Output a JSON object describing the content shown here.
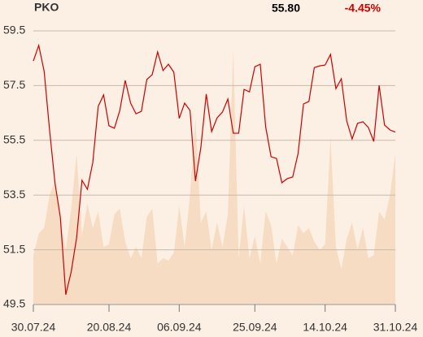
{
  "chart_data": {
    "type": "line",
    "title": "PKO",
    "annotations": [
      "55.80",
      "-4.45%"
    ],
    "categories": [
      "30.07.24",
      null,
      null,
      null,
      null,
      null,
      null,
      null,
      null,
      null,
      null,
      null,
      null,
      null,
      "20.08.24",
      null,
      null,
      null,
      null,
      null,
      null,
      null,
      null,
      null,
      null,
      null,
      null,
      "06.09.24",
      null,
      null,
      null,
      null,
      null,
      null,
      null,
      null,
      null,
      null,
      null,
      null,
      null,
      "25.09.24",
      null,
      null,
      null,
      null,
      null,
      null,
      null,
      null,
      null,
      null,
      null,
      null,
      "14.10.24",
      null,
      null,
      null,
      null,
      null,
      null,
      null,
      null,
      null,
      null,
      null,
      null,
      "31.10.24"
    ],
    "series": [
      {
        "name": "PKO",
        "color": "#cc0000",
        "values": [
          58.4,
          58.97,
          58.02,
          55.88,
          53.95,
          52.68,
          49.86,
          50.69,
          51.93,
          54.04,
          53.71,
          54.69,
          56.74,
          57.16,
          56.03,
          55.94,
          56.59,
          57.69,
          56.86,
          56.47,
          56.56,
          57.72,
          57.9,
          58.73,
          58.05,
          58.28,
          57.99,
          56.3,
          56.86,
          56.59,
          54.01,
          55.23,
          57.19,
          55.82,
          56.32,
          56.53,
          57.01,
          55.76,
          55.76,
          57.36,
          57.27,
          58.19,
          58.28,
          55.99,
          54.9,
          54.84,
          53.95,
          54.1,
          54.16,
          55.02,
          56.83,
          56.92,
          58.16,
          58.22,
          58.25,
          58.64,
          57.39,
          57.75,
          56.21,
          55.55,
          56.12,
          56.18,
          55.97,
          55.46,
          57.51,
          56.06,
          55.88,
          55.8
        ]
      },
      {
        "type": "area",
        "color": "#f7dcc4",
        "values": [
          51.3,
          52.1,
          52.3,
          53.5,
          54.0,
          52.5,
          51.5,
          53.0,
          55.0,
          52.0,
          53.2,
          52.3,
          52.9,
          51.6,
          51.7,
          52.8,
          53.0,
          51.8,
          51.2,
          51.6,
          51.2,
          52.7,
          53.0,
          51.0,
          51.2,
          51.1,
          51.4,
          53.1,
          51.6,
          53.5,
          56.3,
          52.5,
          52.9,
          51.5,
          52.5,
          51.6,
          52.8,
          58.8,
          51.2,
          53.1,
          51.2,
          52.0,
          51.0,
          52.9,
          52.4,
          51.0,
          51.9,
          51.6,
          51.3,
          52.4,
          52.1,
          52.3,
          51.8,
          51.5,
          51.7,
          55.6,
          51.6,
          50.8,
          51.9,
          52.5,
          51.5,
          52.3,
          51.2,
          51.3,
          52.9,
          52.6,
          53.5,
          55.0
        ]
      }
    ],
    "ylim": [
      49.5,
      59.5
    ],
    "yticks": [
      49.5,
      51.5,
      53.5,
      55.5,
      57.5,
      59.5
    ],
    "grid": true,
    "annotation_colors": [
      "#000000",
      "#cc0000"
    ]
  }
}
